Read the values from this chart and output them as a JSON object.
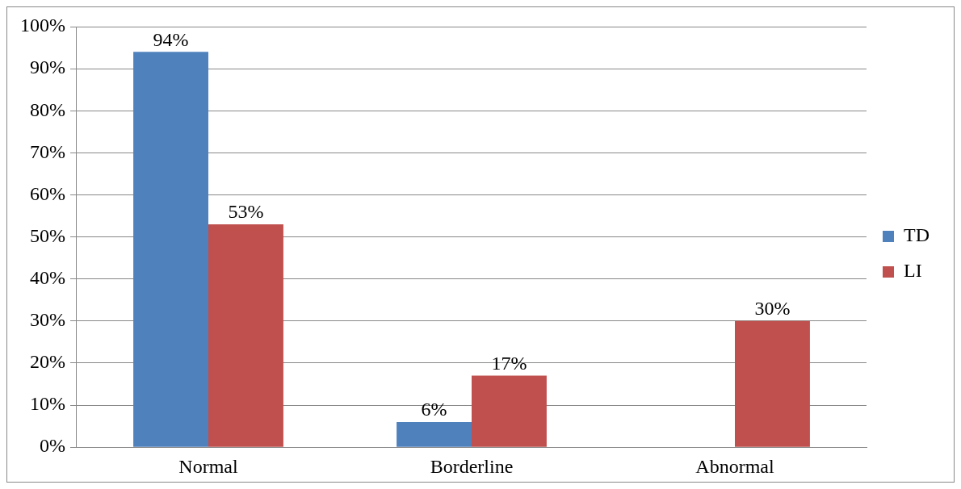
{
  "chart_data": {
    "type": "bar",
    "categories": [
      "Normal",
      "Borderline",
      "Abnormal"
    ],
    "series": [
      {
        "name": "TD",
        "color": "#4f81bd",
        "values": [
          94,
          6,
          null
        ],
        "value_labels": [
          "94%",
          "6%",
          null
        ]
      },
      {
        "name": "LI",
        "color": "#c0504d",
        "values": [
          53,
          17,
          30
        ],
        "value_labels": [
          "53%",
          "17%",
          "30%"
        ]
      }
    ],
    "ylim": [
      0,
      100
    ],
    "yticks": [
      {
        "value": 0,
        "label": "0%"
      },
      {
        "value": 10,
        "label": "10%"
      },
      {
        "value": 20,
        "label": "20%"
      },
      {
        "value": 30,
        "label": "30%"
      },
      {
        "value": 40,
        "label": "40%"
      },
      {
        "value": 50,
        "label": "50%"
      },
      {
        "value": 60,
        "label": "60%"
      },
      {
        "value": 70,
        "label": "70%"
      },
      {
        "value": 80,
        "label": "80%"
      },
      {
        "value": 90,
        "label": "90%"
      },
      {
        "value": 100,
        "label": "100%"
      }
    ],
    "grid": "y",
    "legend": "right"
  }
}
